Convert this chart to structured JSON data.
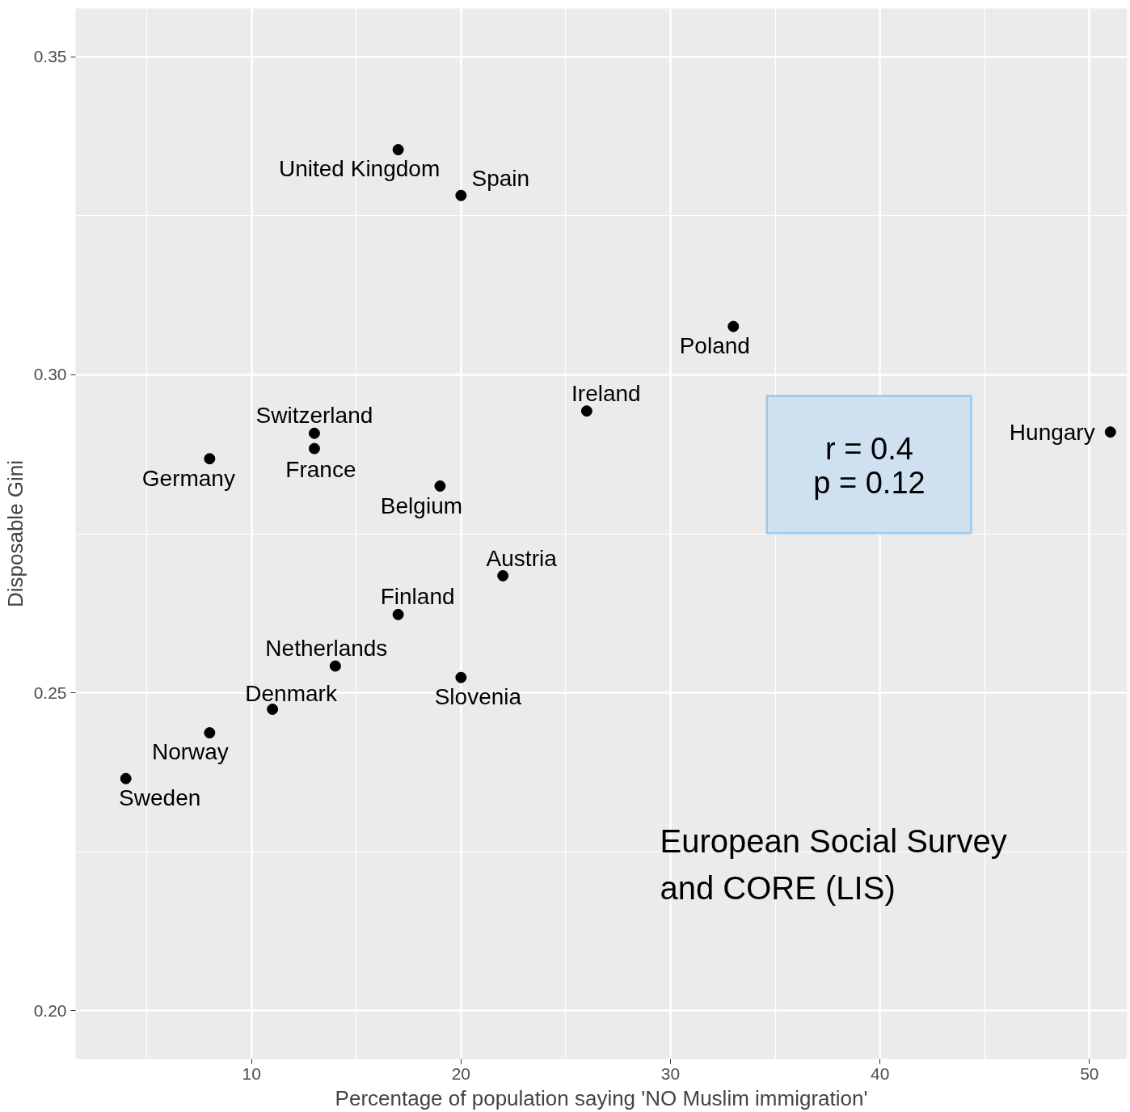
{
  "chart_data": {
    "type": "scatter",
    "xlabel": "Percentage of population saying 'NO Muslim immigration'",
    "ylabel": "Disposable Gini",
    "x": [
      17,
      20,
      33,
      26,
      51,
      13,
      13,
      8,
      19,
      22,
      17,
      14,
      20,
      11,
      8,
      4
    ],
    "series": [
      {
        "color": "#000000",
        "values": [
          0.3354,
          0.3282,
          0.3076,
          0.2943,
          0.291,
          0.2908,
          0.2884,
          0.2868,
          0.2825,
          0.2684,
          0.2623,
          0.2542,
          0.2524,
          0.2474,
          0.2437,
          0.2365
        ]
      }
    ],
    "xlim": [
      1.6,
      51.8
    ],
    "ylim": [
      0.1924,
      0.3576
    ],
    "xticks": [
      10,
      20,
      30,
      40,
      50
    ],
    "yticks": [
      {
        "value": 0.2,
        "label": "0.20"
      },
      {
        "value": 0.25,
        "label": "0.25"
      },
      {
        "value": 0.3,
        "label": "0.30"
      },
      {
        "value": 0.35,
        "label": "0.35"
      }
    ],
    "grid": true,
    "marker": "circle",
    "annotations": [
      {
        "text": "United Kingdom",
        "x": 17,
        "y": 0.3354
      },
      {
        "text": "Spain",
        "x": 20,
        "y": 0.3282
      },
      {
        "text": "Poland",
        "x": 33,
        "y": 0.3076
      },
      {
        "text": "Ireland",
        "x": 26,
        "y": 0.2943
      },
      {
        "text": "Hungary",
        "x": 51,
        "y": 0.291
      },
      {
        "text": "Switzerland",
        "x": 13,
        "y": 0.2908
      },
      {
        "text": "France",
        "x": 13,
        "y": 0.2884
      },
      {
        "text": "Germany",
        "x": 8,
        "y": 0.2868
      },
      {
        "text": "Belgium",
        "x": 19,
        "y": 0.2825
      },
      {
        "text": "Austria",
        "x": 22,
        "y": 0.2684
      },
      {
        "text": "Finland",
        "x": 17,
        "y": 0.2623
      },
      {
        "text": "Netherlands",
        "x": 14,
        "y": 0.2542
      },
      {
        "text": "Slovenia",
        "x": 20,
        "y": 0.2524
      },
      {
        "text": "Denmark",
        "x": 11,
        "y": 0.2474
      },
      {
        "text": "Norway",
        "x": 8,
        "y": 0.2437
      },
      {
        "text": "Sweden",
        "x": 4,
        "y": 0.2365
      },
      "r = 0.4",
      "p = 0.12",
      "European Social Survey and CORE (LIS)"
    ]
  }
}
